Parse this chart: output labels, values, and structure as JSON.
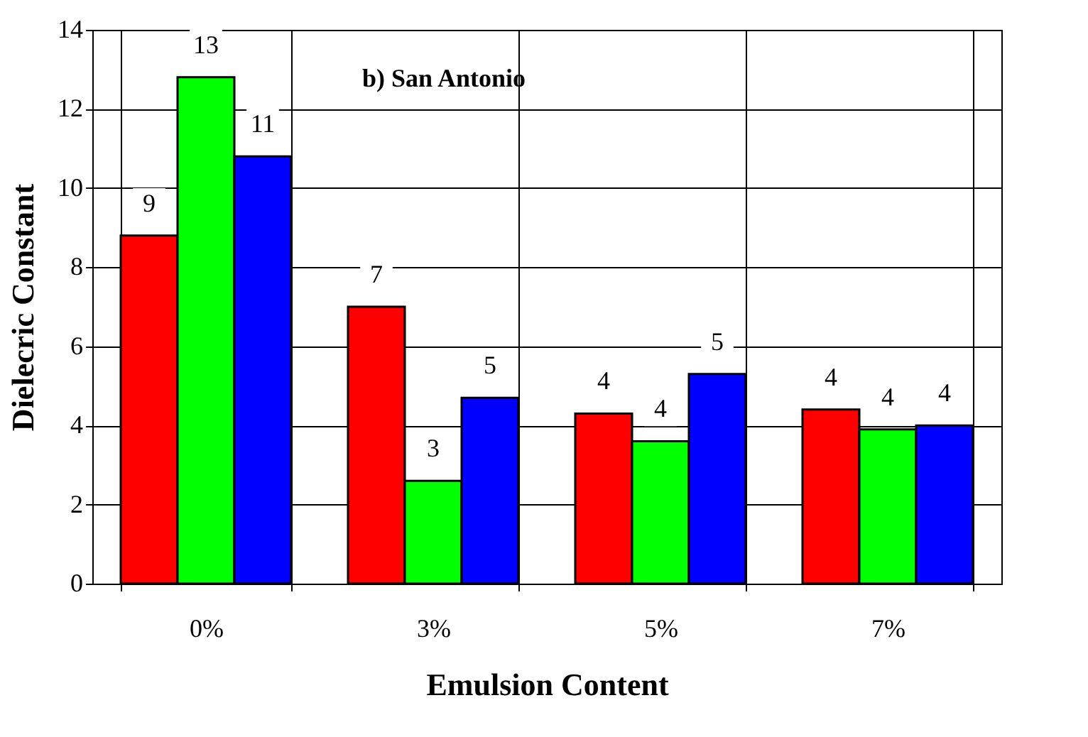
{
  "chart_data": {
    "type": "bar",
    "xlabel": "Emulsion Content",
    "ylabel": "Dielecric Constant",
    "annotations": [
      "b)  San  Antonio"
    ],
    "categories": [
      "0%",
      "3%",
      "5%",
      "7%"
    ],
    "series": [
      {
        "color": "#ff0000",
        "values": [
          8.8,
          7.0,
          4.3,
          4.4
        ],
        "value_labels": [
          "9",
          "7",
          "4",
          "4"
        ]
      },
      {
        "color": "#00ff00",
        "values": [
          12.8,
          2.6,
          3.6,
          3.9
        ],
        "value_labels": [
          "13",
          "3",
          "4",
          "4"
        ]
      },
      {
        "color": "#0000ff",
        "values": [
          10.8,
          4.7,
          5.3,
          4.0
        ],
        "value_labels": [
          "11",
          "5",
          "5",
          "4"
        ]
      }
    ],
    "ylim": [
      0,
      14
    ],
    "yticks": [
      0,
      2,
      4,
      6,
      8,
      10,
      12,
      14
    ],
    "grid": true,
    "legend": false
  }
}
